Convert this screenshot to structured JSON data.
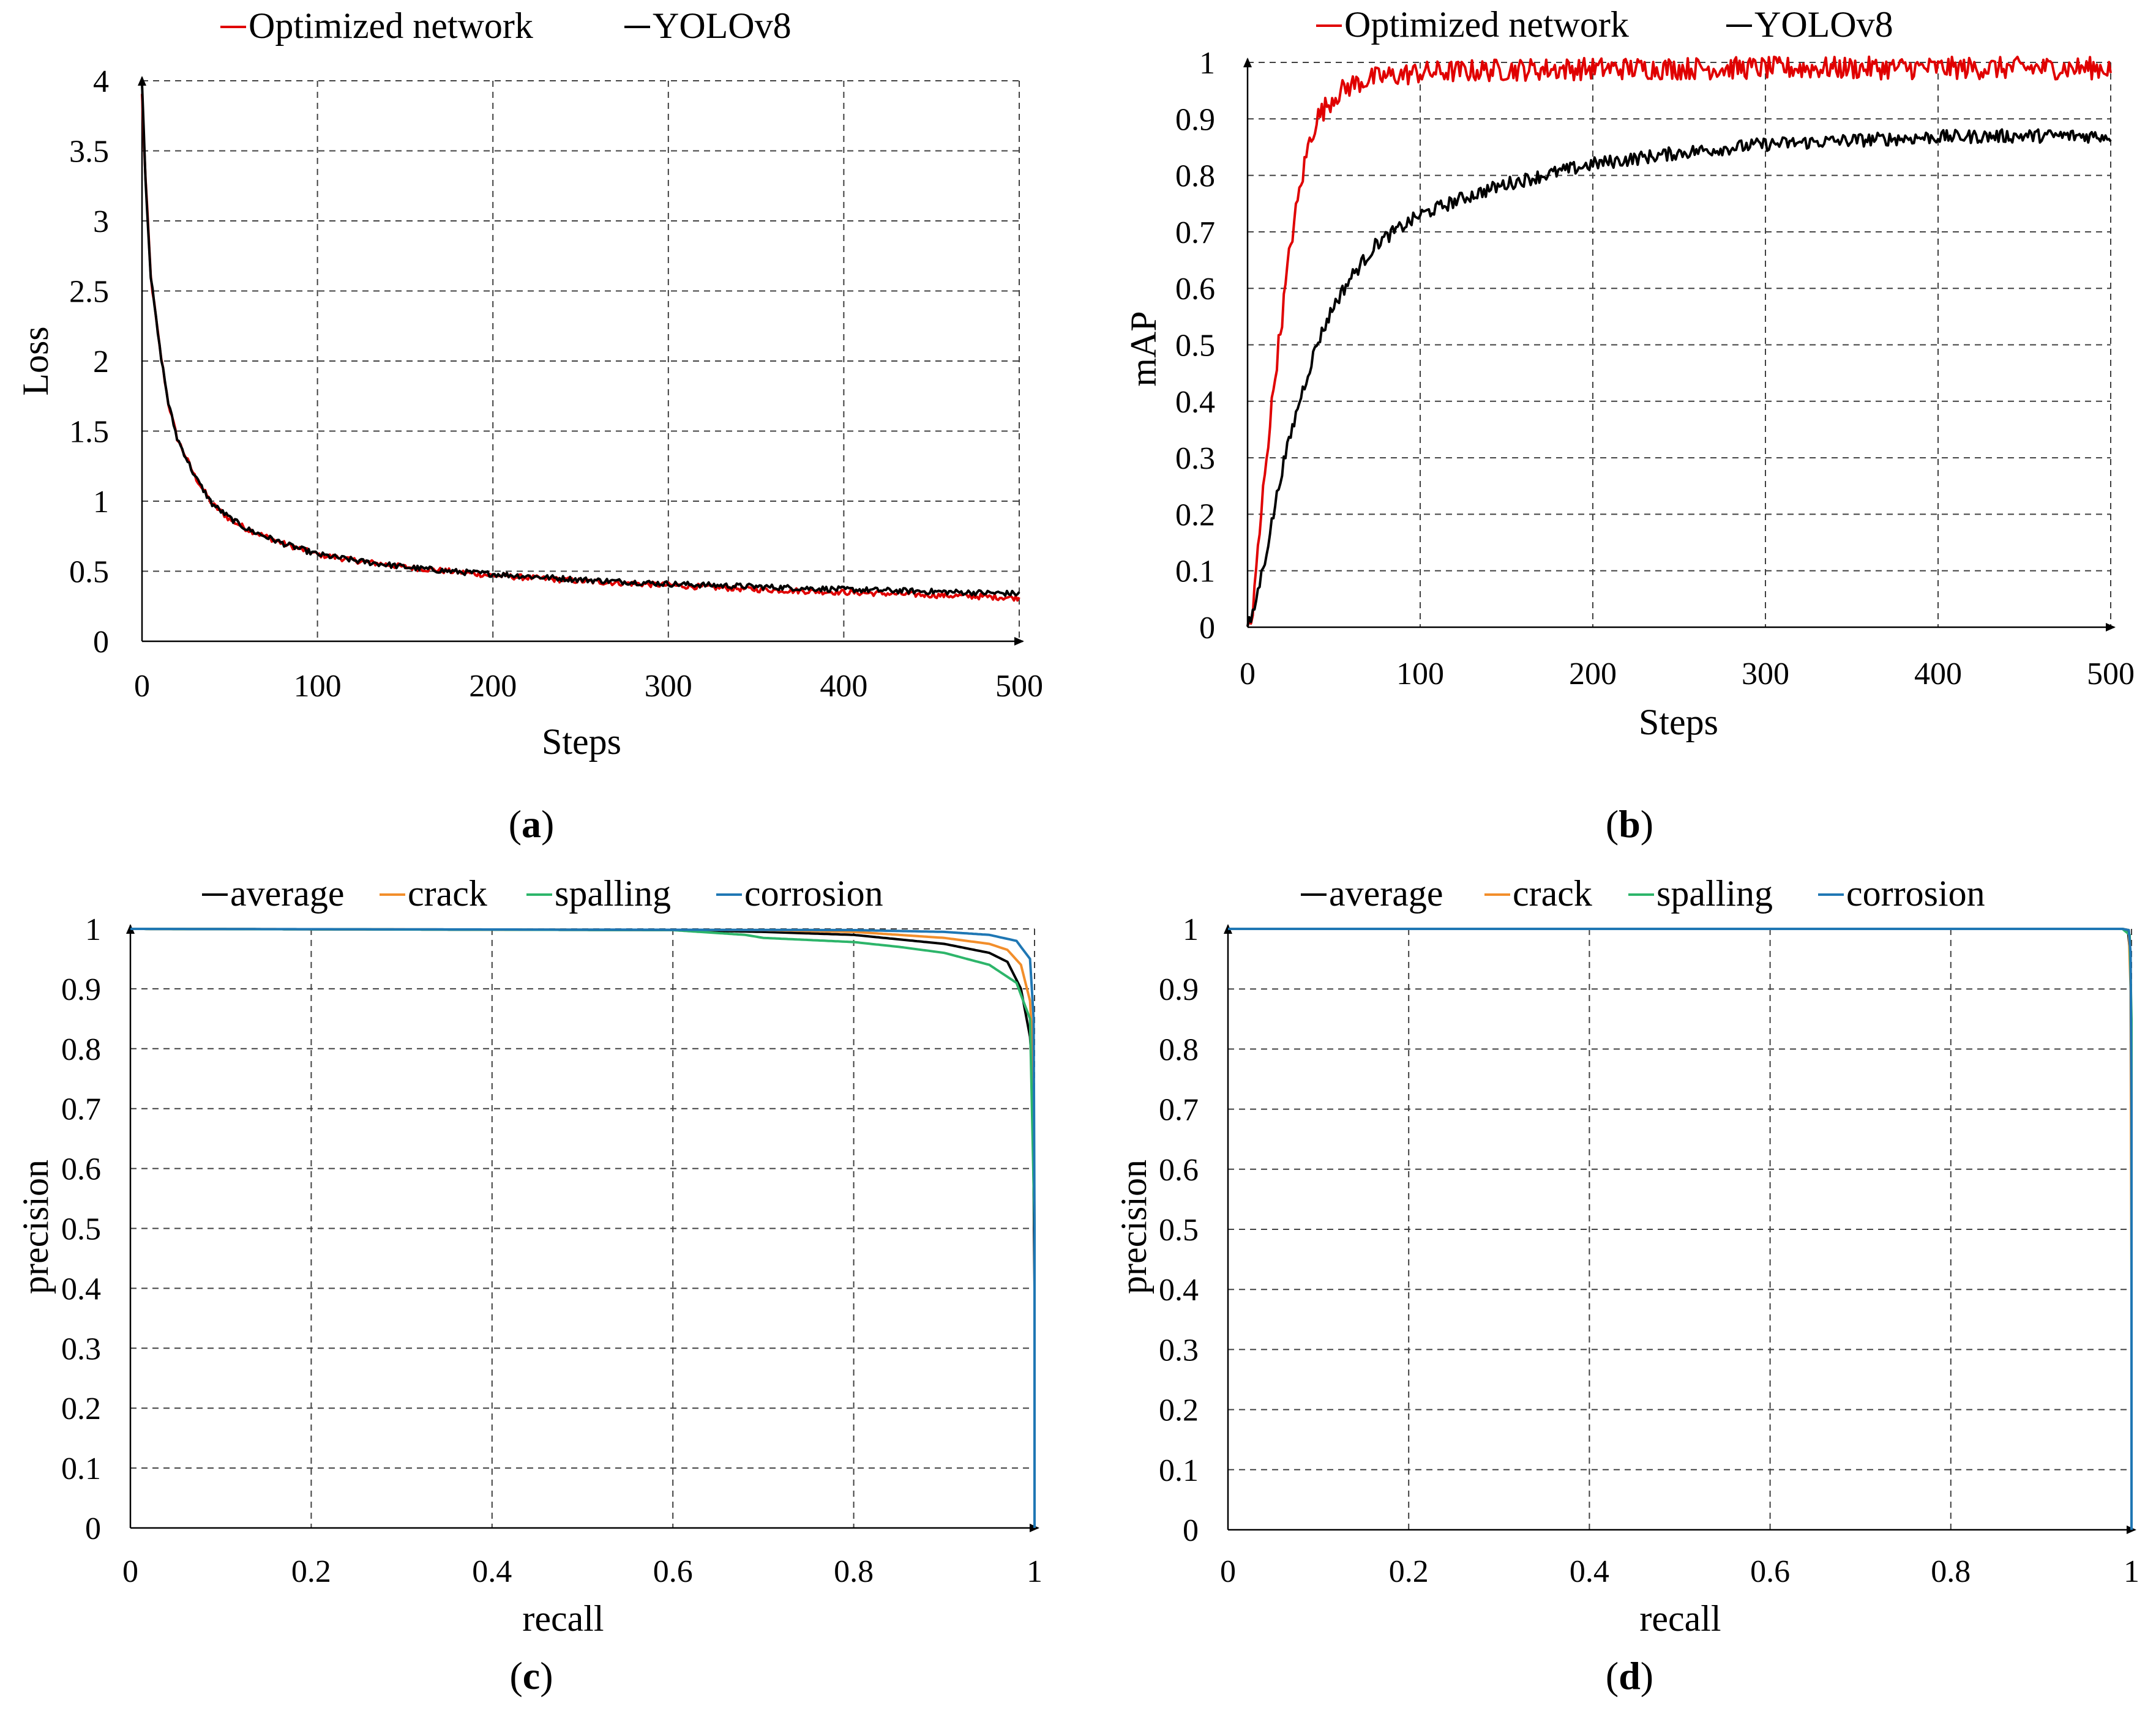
{
  "chart_data": [
    {
      "id": "a",
      "type": "line",
      "panel_label": "a",
      "xlabel": "Steps",
      "ylabel": "Loss",
      "xlim": [
        0,
        500
      ],
      "ylim": [
        0,
        4
      ],
      "xticks": [
        0,
        100,
        200,
        300,
        400,
        500
      ],
      "yticks": [
        0,
        0.5,
        1,
        1.5,
        2,
        2.5,
        3,
        3.5,
        4
      ],
      "ytick_labels": [
        "0",
        "0.5",
        "1",
        "1.5",
        "2",
        "2.5",
        "3",
        "3.5",
        "4"
      ],
      "grid": true,
      "legend_position": "top",
      "series": [
        {
          "name": "Optimized network",
          "color": "#e00000",
          "noise": 0.005,
          "x": [
            0,
            2,
            5,
            10,
            15,
            20,
            30,
            40,
            50,
            60,
            80,
            100,
            125,
            150,
            175,
            200,
            250,
            300,
            350,
            400,
            450,
            500
          ],
          "y": [
            3.9,
            3.3,
            2.6,
            2.1,
            1.7,
            1.45,
            1.18,
            0.98,
            0.87,
            0.8,
            0.7,
            0.62,
            0.57,
            0.53,
            0.5,
            0.47,
            0.43,
            0.4,
            0.37,
            0.35,
            0.33,
            0.31
          ]
        },
        {
          "name": "YOLOv8",
          "color": "#000000",
          "noise": 0.005,
          "x": [
            0,
            2,
            5,
            10,
            15,
            20,
            30,
            40,
            50,
            60,
            80,
            100,
            125,
            150,
            175,
            200,
            250,
            300,
            350,
            400,
            450,
            500
          ],
          "y": [
            4.0,
            3.3,
            2.6,
            2.1,
            1.7,
            1.45,
            1.18,
            0.98,
            0.88,
            0.8,
            0.7,
            0.62,
            0.57,
            0.53,
            0.5,
            0.48,
            0.44,
            0.41,
            0.39,
            0.37,
            0.355,
            0.34
          ]
        }
      ]
    },
    {
      "id": "b",
      "type": "line",
      "panel_label": "b",
      "xlabel": "Steps",
      "ylabel": "mAP",
      "xlim": [
        0,
        500
      ],
      "ylim": [
        0,
        1
      ],
      "xticks": [
        0,
        100,
        200,
        300,
        400,
        500
      ],
      "yticks": [
        0,
        0.1,
        0.2,
        0.3,
        0.4,
        0.5,
        0.6,
        0.7,
        0.8,
        0.9,
        1
      ],
      "ytick_labels": [
        "0",
        "0.1",
        "0.2",
        "0.3",
        "0.4",
        "0.5",
        "0.6",
        "0.7",
        "0.8",
        "0.9",
        "1"
      ],
      "grid": true,
      "legend_position": "top",
      "series": [
        {
          "name": "Optimized network",
          "color": "#e00000",
          "noise": 0.02,
          "x": [
            0,
            3,
            5,
            8,
            10,
            13,
            16,
            20,
            25,
            30,
            35,
            40,
            50,
            60,
            70,
            80,
            100,
            150,
            200,
            300,
            400,
            500
          ],
          "y": [
            0,
            0.02,
            0.1,
            0.2,
            0.28,
            0.36,
            0.45,
            0.55,
            0.68,
            0.77,
            0.85,
            0.9,
            0.94,
            0.96,
            0.97,
            0.975,
            0.982,
            0.987,
            0.989,
            0.99,
            0.99,
            0.99
          ]
        },
        {
          "name": "YOLOv8",
          "color": "#000000",
          "noise": 0.012,
          "x": [
            0,
            3,
            5,
            10,
            15,
            20,
            30,
            40,
            50,
            60,
            75,
            100,
            125,
            150,
            200,
            250,
            300,
            350,
            400,
            450,
            500
          ],
          "y": [
            0,
            0.02,
            0.05,
            0.12,
            0.2,
            0.28,
            0.4,
            0.5,
            0.57,
            0.62,
            0.68,
            0.73,
            0.76,
            0.785,
            0.82,
            0.84,
            0.855,
            0.862,
            0.868,
            0.87,
            0.87
          ]
        }
      ]
    },
    {
      "id": "c",
      "type": "line",
      "panel_label": "c",
      "xlabel": "recall",
      "ylabel": "precision",
      "xlim": [
        0,
        1
      ],
      "ylim": [
        0,
        1
      ],
      "xticks": [
        0,
        0.2,
        0.4,
        0.6,
        0.8,
        1
      ],
      "xtick_labels": [
        "0",
        "0.2",
        "0.4",
        "0.6",
        "0.8",
        "1"
      ],
      "yticks": [
        0,
        0.1,
        0.2,
        0.3,
        0.4,
        0.5,
        0.6,
        0.7,
        0.8,
        0.9,
        1
      ],
      "ytick_labels": [
        "0",
        "0.1",
        "0.2",
        "0.3",
        "0.4",
        "0.5",
        "0.6",
        "0.7",
        "0.8",
        "0.9",
        "1"
      ],
      "grid": true,
      "legend_position": "top",
      "series": [
        {
          "name": "average",
          "color": "#000000",
          "x": [
            0,
            0.6,
            0.7,
            0.8,
            0.9,
            0.95,
            0.97,
            0.985,
            0.995,
            0.998,
            1.0,
            1.0
          ],
          "y": [
            1.0,
            0.998,
            0.995,
            0.99,
            0.975,
            0.96,
            0.945,
            0.9,
            0.82,
            0.75,
            0.4,
            0.0
          ]
        },
        {
          "name": "crack",
          "color": "#f28e2b",
          "x": [
            0,
            0.7,
            0.8,
            0.9,
            0.95,
            0.97,
            0.985,
            0.995,
            0.998,
            1.0,
            1.0
          ],
          "y": [
            1.0,
            0.998,
            0.995,
            0.985,
            0.975,
            0.965,
            0.94,
            0.88,
            0.8,
            0.5,
            0.0
          ]
        },
        {
          "name": "spalling",
          "color": "#2db56a",
          "x": [
            0,
            0.6,
            0.68,
            0.7,
            0.8,
            0.85,
            0.9,
            0.95,
            0.98,
            0.995,
            1.0,
            1.0
          ],
          "y": [
            1.0,
            0.998,
            0.99,
            0.985,
            0.978,
            0.97,
            0.96,
            0.94,
            0.91,
            0.85,
            0.5,
            0.0
          ]
        },
        {
          "name": "corrosion",
          "color": "#1f77b4",
          "x": [
            0,
            0.8,
            0.9,
            0.95,
            0.98,
            0.995,
            0.999,
            1.0,
            1.0
          ],
          "y": [
            1.0,
            0.998,
            0.995,
            0.99,
            0.98,
            0.95,
            0.85,
            0.5,
            0.0
          ]
        }
      ]
    },
    {
      "id": "d",
      "type": "line",
      "panel_label": "d",
      "xlabel": "recall",
      "ylabel": "precision",
      "xlim": [
        0,
        1
      ],
      "ylim": [
        0,
        1
      ],
      "xticks": [
        0,
        0.2,
        0.4,
        0.6,
        0.8,
        1
      ],
      "xtick_labels": [
        "0",
        "0.2",
        "0.4",
        "0.6",
        "0.8",
        "1"
      ],
      "yticks": [
        0,
        0.1,
        0.2,
        0.3,
        0.4,
        0.5,
        0.6,
        0.7,
        0.8,
        0.9,
        1
      ],
      "ytick_labels": [
        "0",
        "0.1",
        "0.2",
        "0.3",
        "0.4",
        "0.5",
        "0.6",
        "0.7",
        "0.8",
        "0.9",
        "1"
      ],
      "grid": true,
      "legend_position": "top",
      "series": [
        {
          "name": "average",
          "color": "#000000",
          "x": [
            0,
            0.99,
            0.996,
            0.999,
            1.0,
            1.0
          ],
          "y": [
            1.0,
            1.0,
            0.998,
            0.95,
            0.6,
            0.0
          ]
        },
        {
          "name": "crack",
          "color": "#f28e2b",
          "x": [
            0,
            0.99,
            0.997,
            0.999,
            1.0,
            1.0
          ],
          "y": [
            1.0,
            1.0,
            0.998,
            0.9,
            0.4,
            0.0
          ]
        },
        {
          "name": "spalling",
          "color": "#2db56a",
          "x": [
            0,
            0.99,
            0.998,
            1.0,
            1.0
          ],
          "y": [
            1.0,
            1.0,
            0.99,
            0.85,
            0.0
          ]
        },
        {
          "name": "corrosion",
          "color": "#1f77b4",
          "x": [
            0,
            0.99,
            0.997,
            0.999,
            1.0,
            1.0
          ],
          "y": [
            1.0,
            1.0,
            0.998,
            0.96,
            0.7,
            0.0
          ]
        }
      ]
    }
  ]
}
